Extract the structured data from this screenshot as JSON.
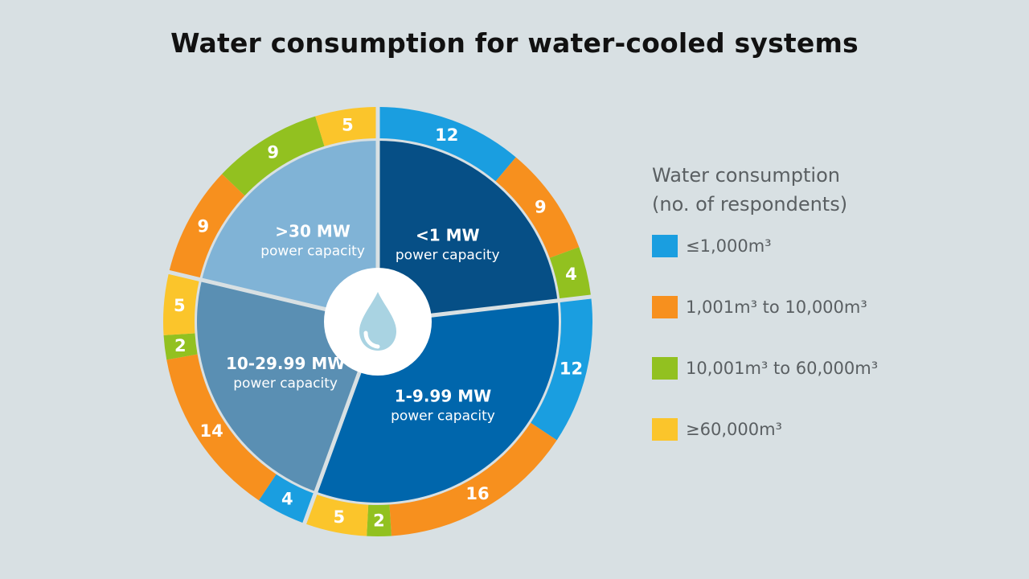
{
  "chart_data": {
    "type": "pie",
    "title": "Water consumption for water-cooled systems",
    "legend_title": [
      "Water consumption",
      "(no. of respondents)"
    ],
    "legend_position": "right",
    "categories": [
      {
        "label": "≤1,000m³",
        "color": "#1a9ee0"
      },
      {
        "label": "1,001m³ to 10,000m³",
        "color": "#f7901e"
      },
      {
        "label": "10,001m³ to 60,000m³",
        "color": "#92c120"
      },
      {
        "label": "≥60,000m³",
        "color": "#fbc52b"
      }
    ],
    "groups": [
      {
        "name": "<1 MW",
        "sub": "power capacity",
        "color": "#064f86",
        "values": [
          12,
          9,
          4,
          0
        ]
      },
      {
        "name": "1-9.99 MW",
        "sub": "power capacity",
        "color": "#0066ac",
        "values": [
          12,
          16,
          2,
          5
        ]
      },
      {
        "name": "10-29.99 MW",
        "sub": "power capacity",
        "color": "#5a8fb3",
        "values": [
          4,
          14,
          2,
          5
        ]
      },
      {
        "name": ">30 MW",
        "sub": "power capacity",
        "color": "#80b3d6",
        "values": [
          0,
          9,
          9,
          5
        ]
      }
    ],
    "center_icon": "water-drop-icon"
  }
}
